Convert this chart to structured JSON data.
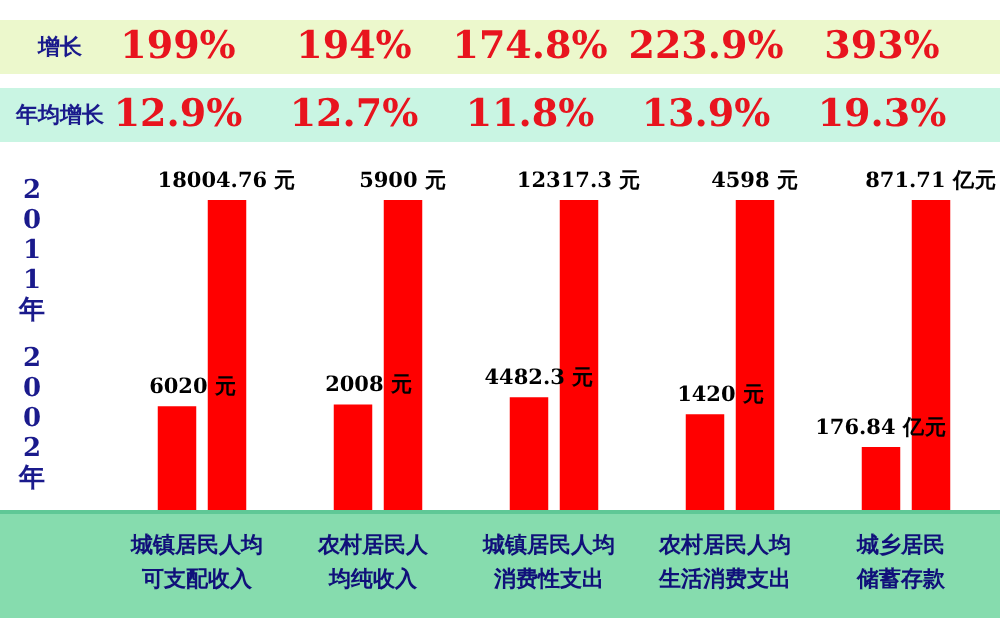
{
  "chart_data": [
    {
      "type": "other",
      "annotations": [
        "增长",
        "年均增长",
        "2011年",
        "2002年"
      ]
    },
    {
      "type": "bar",
      "categories": [
        null,
        null
      ],
      "values": [
        6020,
        18004.76
      ],
      "value_labels": [
        "6020 元",
        "18004.76 元"
      ],
      "color": "#ff0000",
      "xlabel": "城镇居民人均可支配收入",
      "annotations": [
        "199%",
        "12.9%"
      ]
    },
    {
      "type": "bar",
      "categories": [
        null,
        null
      ],
      "values": [
        2008,
        5900
      ],
      "value_labels": [
        "2008 元",
        "5900 元"
      ],
      "color": "#ff0000",
      "xlabel": "农村居民人均纯收入",
      "annotations": [
        "194%",
        "12.7%"
      ]
    },
    {
      "type": "bar",
      "categories": [
        null,
        null
      ],
      "values": [
        4482.3,
        12317.3
      ],
      "value_labels": [
        "4482.3 元",
        "12317.3 元"
      ],
      "color": "#ff0000",
      "xlabel": "城镇居民人均消费性支出",
      "annotations": [
        "174.8%",
        "11.8%"
      ]
    },
    {
      "type": "bar",
      "categories": [
        null,
        null
      ],
      "values": [
        1420,
        4598
      ],
      "value_labels": [
        "1420 元",
        "4598 元"
      ],
      "color": "#ff0000",
      "xlabel": "农村居民人均生活消费支出",
      "annotations": [
        "223.9%",
        "13.9%"
      ]
    },
    {
      "type": "bar",
      "categories": [
        null,
        null
      ],
      "values": [
        176.84,
        871.71
      ],
      "value_labels": [
        "176.84 亿元",
        "871.71 亿元"
      ],
      "color": "#ff0000",
      "xlabel": "城乡居民储蓄存款",
      "annotations": [
        "393%",
        "19.3%"
      ]
    }
  ]
}
